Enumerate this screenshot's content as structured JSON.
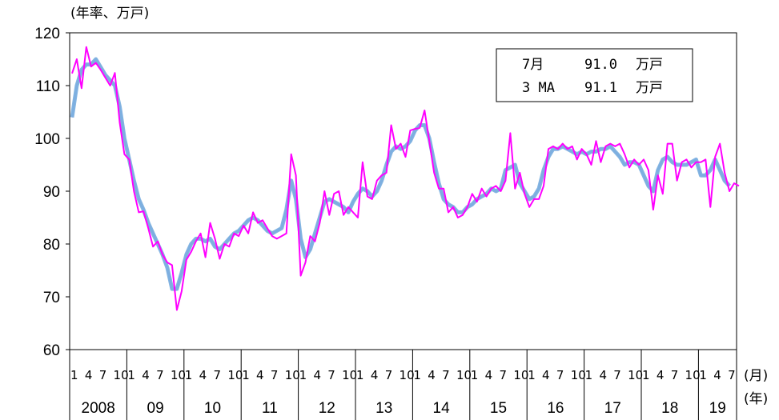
{
  "chart_data": {
    "type": "line",
    "title": "",
    "ylabel": "(年率、万戸)",
    "xlabel_month": "(月)",
    "xlabel_year": "(年)",
    "ylim": [
      60,
      120
    ],
    "yticks": [
      60,
      70,
      80,
      90,
      100,
      110,
      120
    ],
    "grid": false,
    "month_tick_labels": [
      "1",
      "4",
      "7",
      "10"
    ],
    "year_labels": [
      "2008",
      "09",
      "10",
      "11",
      "12",
      "13",
      "14",
      "15",
      "16",
      "17",
      "18",
      "19"
    ],
    "legend": {
      "position": "top-right",
      "rows": [
        {
          "label": "7月",
          "value": "91.0",
          "unit": "万戸"
        },
        {
          "label": "3 MA",
          "value": "91.1",
          "unit": "万戸"
        }
      ]
    },
    "x_start": "2008-01",
    "colors": {
      "monthly": "#ff00ff",
      "ma": "#7fb2e0",
      "ma_shadow": "#5a6fd6"
    },
    "series": [
      {
        "key": "monthly",
        "values": [
          112.3,
          115.0,
          109.5,
          117.3,
          113.6,
          114.3,
          113.0,
          111.5,
          110.0,
          112.4,
          103.0,
          97.0,
          96.0,
          90.0,
          86.0,
          86.2,
          83.0,
          79.5,
          80.5,
          78.0,
          76.5,
          76.0,
          67.5,
          71.0,
          77.0,
          78.5,
          80.5,
          82.0,
          77.5,
          84.0,
          81.0,
          77.2,
          80.0,
          79.5,
          82.0,
          81.5,
          83.5,
          82.0,
          86.0,
          84.0,
          84.5,
          83.0,
          81.5,
          81.0,
          81.5,
          82.0,
          97.0,
          93.0,
          74.0,
          76.5,
          81.5,
          80.5,
          84.0,
          90.0,
          85.5,
          89.5,
          90.0,
          85.5,
          87.0,
          86.0,
          85.0,
          95.5,
          89.0,
          88.5,
          92.0,
          93.0,
          93.5,
          102.5,
          98.0,
          99.0,
          96.5,
          101.5,
          101.8,
          102.0,
          105.3,
          99.5,
          93.5,
          90.5,
          90.5,
          86.0,
          87.0,
          85.0,
          85.5,
          87.0,
          89.5,
          88.0,
          90.5,
          89.0,
          90.5,
          91.0,
          90.0,
          92.0,
          101.0,
          90.5,
          93.5,
          89.5,
          87.0,
          88.5,
          88.5,
          91.0,
          98.0,
          98.5,
          98.0,
          99.0,
          98.0,
          98.5,
          96.0,
          98.0,
          97.0,
          95.0,
          99.5,
          95.5,
          98.5,
          99.0,
          98.5,
          99.0,
          97.0,
          94.5,
          96.0,
          95.0,
          96.0,
          94.0,
          86.5,
          93.0,
          89.5,
          99.0,
          99.0,
          92.0,
          95.5,
          96.0,
          94.5,
          95.5,
          95.5,
          96.0,
          87.0,
          96.5,
          99.0,
          93.5,
          90.0,
          91.5,
          91.0
        ]
      },
      {
        "key": "ma",
        "values": [
          104.0,
          110.0,
          113.0,
          114.0,
          114.0,
          115.0,
          113.5,
          112.0,
          111.0,
          110.0,
          106.0,
          100.0,
          96.0,
          92.0,
          88.5,
          86.5,
          84.0,
          82.0,
          80.0,
          78.0,
          75.5,
          71.5,
          71.5,
          74.5,
          78.0,
          80.0,
          81.0,
          81.0,
          80.5,
          81.0,
          79.5,
          79.0,
          80.0,
          81.0,
          82.0,
          82.5,
          83.5,
          84.5,
          85.0,
          84.5,
          83.5,
          82.5,
          82.0,
          82.5,
          83.0,
          86.5,
          92.0,
          88.5,
          81.0,
          77.5,
          79.0,
          82.0,
          85.0,
          88.0,
          88.5,
          88.0,
          87.5,
          87.0,
          86.0,
          88.0,
          89.5,
          90.5,
          90.0,
          89.0,
          90.0,
          92.0,
          95.0,
          97.5,
          98.5,
          98.0,
          98.5,
          99.5,
          101.5,
          102.5,
          102.5,
          100.0,
          95.5,
          91.5,
          88.5,
          87.5,
          87.0,
          86.0,
          86.0,
          87.0,
          87.5,
          88.5,
          89.0,
          89.5,
          90.5,
          90.0,
          90.5,
          94.0,
          94.5,
          95.0,
          91.5,
          90.0,
          88.5,
          89.0,
          90.5,
          94.0,
          96.5,
          98.0,
          98.0,
          98.5,
          98.0,
          97.5,
          97.0,
          97.5,
          97.0,
          97.5,
          97.5,
          98.0,
          98.0,
          98.5,
          97.5,
          96.5,
          95.0,
          95.5,
          95.5,
          95.0,
          93.0,
          91.0,
          90.0,
          94.0,
          96.0,
          96.5,
          95.5,
          95.0,
          95.0,
          95.0,
          95.5,
          96.0,
          93.0,
          93.0,
          94.0,
          96.0,
          94.0,
          92.0,
          91.0
        ]
      }
    ]
  }
}
